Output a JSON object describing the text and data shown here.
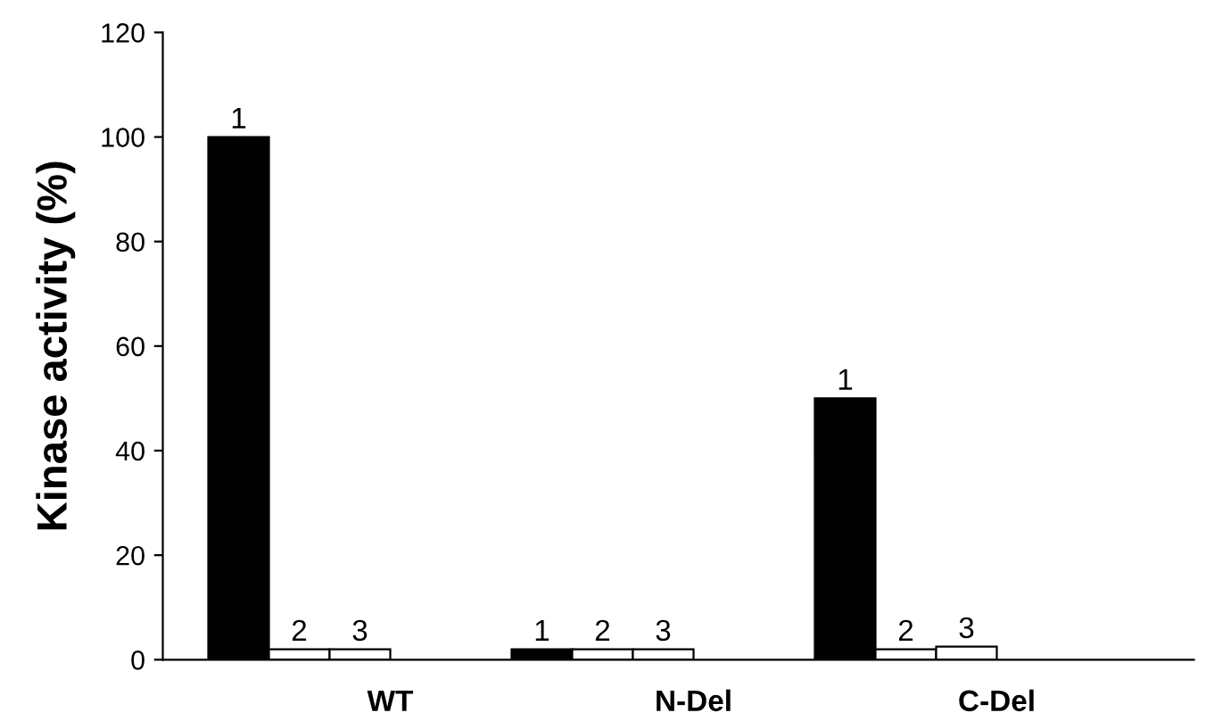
{
  "chart_data": {
    "type": "bar",
    "ylabel": "Kinase activity (%)",
    "categories": [
      "WT",
      "N-Del",
      "C-Del"
    ],
    "series": [
      {
        "name": "1",
        "color": "#000000",
        "values": [
          100,
          2,
          50
        ]
      },
      {
        "name": "2",
        "color": "#ffffff",
        "values": [
          2,
          2,
          2
        ]
      },
      {
        "name": "3",
        "color": "#ffffff",
        "values": [
          2,
          2,
          2.5
        ]
      }
    ],
    "ylim": [
      0,
      120
    ],
    "yticks": [
      0,
      20,
      40,
      60,
      80,
      100,
      120
    ],
    "grid": false,
    "legend": false
  }
}
